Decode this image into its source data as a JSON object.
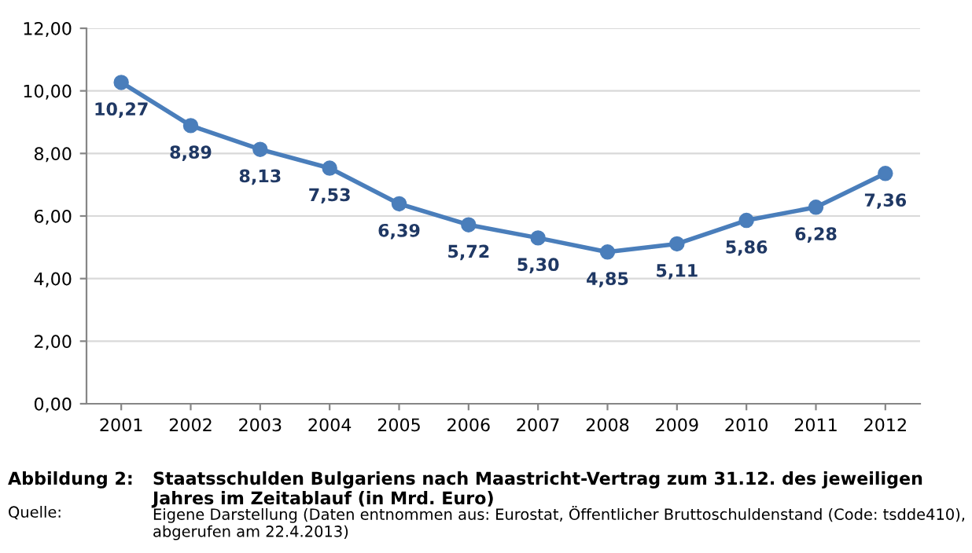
{
  "chart_data": {
    "type": "line",
    "categories": [
      "2001",
      "2002",
      "2003",
      "2004",
      "2005",
      "2006",
      "2007",
      "2008",
      "2009",
      "2010",
      "2011",
      "2012"
    ],
    "series": [
      {
        "color": "#4a7ebb",
        "values": [
          10.27,
          8.89,
          8.13,
          7.53,
          6.39,
          5.72,
          5.3,
          4.85,
          5.11,
          5.86,
          6.28,
          7.36
        ],
        "value_labels": [
          "10,27",
          "8,89",
          "8,13",
          "7,53",
          "6,39",
          "5,72",
          "5,30",
          "4,85",
          "5,11",
          "5,86",
          "6,28",
          "7,36"
        ]
      }
    ],
    "ylim": [
      0,
      12
    ],
    "yticks": [
      {
        "value": 0,
        "label": "0,00"
      },
      {
        "value": 2,
        "label": "2,00"
      },
      {
        "value": 4,
        "label": "4,00"
      },
      {
        "value": 6,
        "label": "6,00"
      },
      {
        "value": 8,
        "label": "8,00"
      },
      {
        "value": 10,
        "label": "10,00"
      },
      {
        "value": 12,
        "label": "12,00"
      }
    ],
    "grid": "y",
    "marker": "circle",
    "line_style": "solid",
    "legend": false,
    "annotations": [
      "Abbildung 2:",
      "Staatsschulden Bulgariens nach Maastricht-Vertrag zum 31.12. des jeweiligen Jahres im Zeitablauf (in Mrd. Euro)",
      "Quelle:",
      "Eigene Darstellung (Daten entnommen aus: Eurostat, Öffentlicher Bruttoschuldenstand (Code: tsdde410), abgerufen am 22.4.2013)"
    ]
  }
}
